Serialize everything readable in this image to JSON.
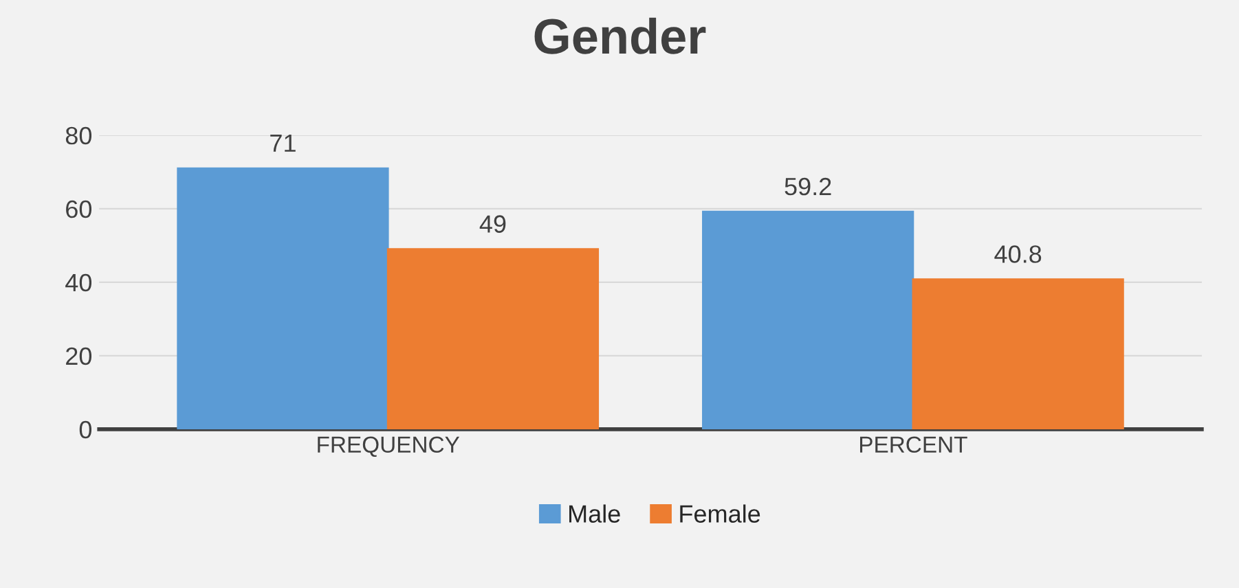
{
  "chart_data": {
    "type": "bar",
    "title": "Gender",
    "categories": [
      "FREQUENCY",
      "PERCENT"
    ],
    "series": [
      {
        "name": "Male",
        "color": "#5b9bd5",
        "values": [
          71,
          59.2
        ]
      },
      {
        "name": "Female",
        "color": "#ed7d31",
        "values": [
          49,
          40.8
        ]
      }
    ],
    "ylim": [
      0,
      80
    ],
    "yticks": [
      0,
      20,
      40,
      60,
      80
    ],
    "grid": "y",
    "data_labels": true,
    "legend": "bottom"
  }
}
